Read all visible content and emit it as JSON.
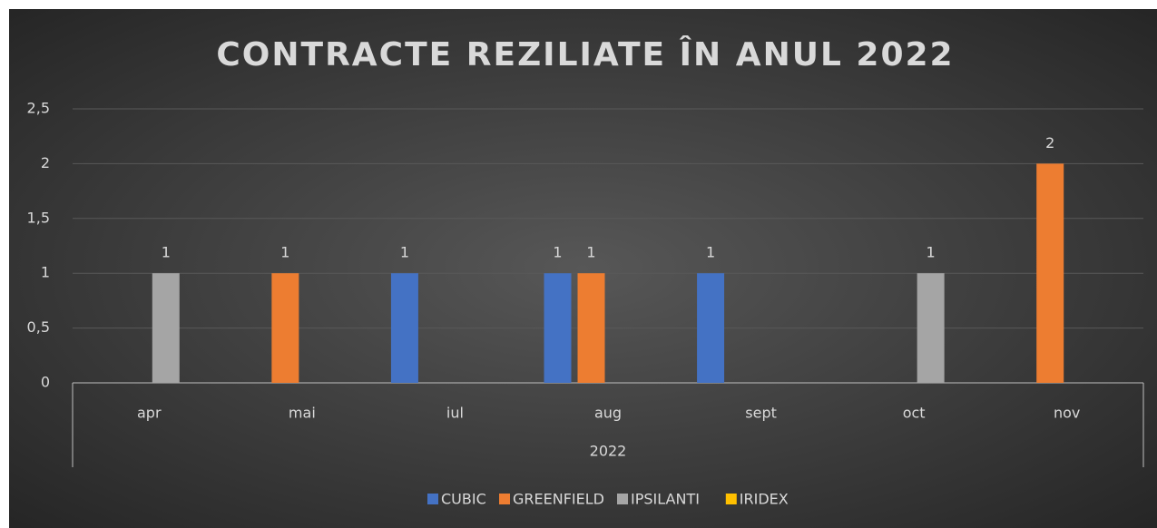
{
  "chart_data": {
    "type": "bar",
    "title": "CONTRACTE REZILIATE ÎN ANUL 2022",
    "categories": [
      "apr",
      "mai",
      "iul",
      "aug",
      "sept",
      "oct",
      "nov"
    ],
    "group_label": "2022",
    "series": [
      {
        "name": "CUBIC",
        "color": "#4472c4",
        "values": [
          null,
          null,
          1,
          1,
          1,
          null,
          null
        ]
      },
      {
        "name": "GREENFIELD",
        "color": "#ed7d31",
        "values": [
          null,
          1,
          null,
          1,
          null,
          null,
          2
        ]
      },
      {
        "name": "IPSILANTI",
        "color": "#a5a5a5",
        "values": [
          1,
          null,
          null,
          null,
          null,
          1,
          null
        ]
      },
      {
        "name": "IRIDEX",
        "color": "#ffc000",
        "values": [
          null,
          null,
          null,
          null,
          null,
          null,
          null
        ]
      }
    ],
    "ylim": [
      0,
      2.5
    ],
    "yticks": [
      0,
      {
        "value": 0.5,
        "label": "0,5"
      },
      1,
      {
        "value": 1.5,
        "label": "1,5"
      },
      2,
      {
        "value": 2.5,
        "label": "2,5"
      }
    ],
    "grid": true,
    "legend": "bottom"
  }
}
